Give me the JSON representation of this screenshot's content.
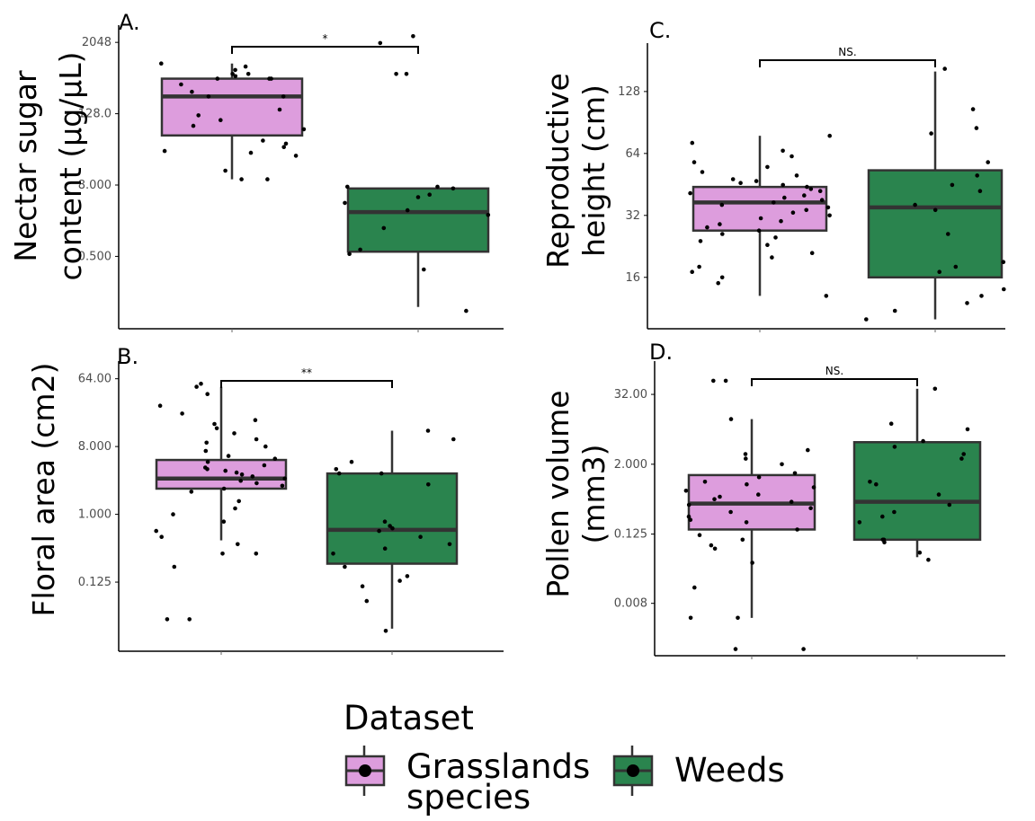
{
  "colors": {
    "grasslands": "#dd9ddd",
    "weeds": "#2a844e",
    "box_stroke": "#333333",
    "point": "#000000",
    "axis": "#000000"
  },
  "chart_data": [
    {
      "type": "box",
      "panel_label": "A.",
      "ylabel_lines": [
        "Nectar sugar",
        "content (µg/µL)"
      ],
      "scale": "log2",
      "yticks": [
        0.5,
        8,
        128,
        2048
      ],
      "ytick_labels": [
        "0.500",
        "8.000",
        "128.0",
        "2048"
      ],
      "ylim": [
        0.03,
        4000
      ],
      "significance": "*",
      "groups": [
        {
          "name": "Grasslands species",
          "q1": 55,
          "median": 250,
          "q3": 500,
          "whisker_low": 10,
          "whisker_high": 900,
          "points": [
            10,
            10,
            14,
            120,
            150,
            500,
            600,
            550,
            700,
            900,
            800,
            600,
            500,
            250,
            250,
            100,
            80,
            70,
            45,
            40,
            35,
            30,
            28,
            25,
            300,
            500,
            400
          ]
        },
        {
          "name": "Weeds",
          "q1": 0.6,
          "median": 2.8,
          "q3": 7,
          "whisker_low": 0.07,
          "whisker_high": 7,
          "points": [
            0.06,
            0.3,
            0.55,
            0.65,
            1.5,
            2.5,
            3,
            4,
            5,
            5.5,
            7,
            7.5,
            7.5,
            600,
            600,
            2000,
            2600
          ]
        }
      ]
    },
    {
      "type": "box",
      "panel_label": "C.",
      "ylabel_lines": [
        "Reproductive",
        "height (cm)"
      ],
      "scale": "log2",
      "yticks": [
        16,
        32,
        64,
        128
      ],
      "ytick_labels": [
        "16",
        "32",
        "64",
        "128"
      ],
      "ylim": [
        9,
        220
      ],
      "significance": "NS.",
      "groups": [
        {
          "name": "Grasslands species",
          "q1": 27,
          "median": 37,
          "q3": 44,
          "whisker_low": 13,
          "whisker_high": 78,
          "points": [
            13,
            15,
            16,
            17,
            18,
            20,
            21,
            23,
            24,
            25,
            26,
            27,
            28,
            29,
            30,
            31,
            32,
            33,
            34,
            35,
            36,
            37,
            38,
            39,
            40,
            41,
            42,
            43,
            44,
            45,
            46,
            47,
            48,
            50,
            52,
            55,
            58,
            62,
            66,
            72,
            78
          ]
        },
        {
          "name": "Weeds",
          "q1": 16,
          "median": 35,
          "q3": 53,
          "whisker_low": 10,
          "whisker_high": 160,
          "points": [
            10,
            11,
            12,
            13,
            14,
            17,
            18,
            19,
            26,
            34,
            36,
            42,
            45,
            50,
            58,
            80,
            85,
            105,
            165
          ]
        }
      ]
    },
    {
      "type": "box",
      "panel_label": "B.",
      "ylabel_lines": [
        "Floral area (cm2)"
      ],
      "scale": "log2",
      "yticks": [
        0.125,
        1,
        8,
        64
      ],
      "ytick_labels": [
        "0.125",
        "1.000",
        "8.000",
        "64.00"
      ],
      "ylim": [
        0.015,
        110
      ],
      "significance": "**",
      "groups": [
        {
          "name": "Grasslands species",
          "q1": 2.2,
          "median": 3.0,
          "q3": 5.3,
          "whisker_low": 0.45,
          "whisker_high": 50,
          "points": [
            0.04,
            0.04,
            0.2,
            0.3,
            0.3,
            0.4,
            0.5,
            0.6,
            0.8,
            1.0,
            1.2,
            1.5,
            2,
            2.2,
            2.4,
            2.6,
            2.8,
            3,
            3.2,
            3.4,
            3.6,
            3.8,
            4,
            4.2,
            4.5,
            5,
            5.5,
            6,
            7,
            8,
            9,
            10,
            12,
            14,
            16,
            18,
            22,
            28,
            40,
            50,
            55
          ]
        },
        {
          "name": "Weeds",
          "q1": 0.22,
          "median": 0.62,
          "q3": 3.5,
          "whisker_low": 0.03,
          "whisker_high": 13,
          "points": [
            0.028,
            0.07,
            0.11,
            0.13,
            0.15,
            0.2,
            0.3,
            0.35,
            0.4,
            0.5,
            0.6,
            0.65,
            0.7,
            0.8,
            2.5,
            3.5,
            3.5,
            4,
            5,
            10,
            13
          ]
        }
      ]
    },
    {
      "type": "box",
      "panel_label": "D.",
      "ylabel_lines": [
        "Pollen volume",
        "(mm3)"
      ],
      "scale": "log2",
      "yticks": [
        0.008,
        0.125,
        2,
        32
      ],
      "ytick_labels": [
        "0.008",
        "0.125",
        "2.000",
        "32.00"
      ],
      "ylim": [
        0.001,
        120
      ],
      "significance": "NS.",
      "groups": [
        {
          "name": "Grasslands species",
          "q1": 0.15,
          "median": 0.42,
          "q3": 1.3,
          "whisker_low": 0.0045,
          "whisker_high": 12,
          "points": [
            0.0013,
            0.0013,
            0.0045,
            0.0045,
            0.015,
            0.04,
            0.07,
            0.08,
            0.1,
            0.12,
            0.15,
            0.2,
            0.22,
            0.25,
            0.3,
            0.35,
            0.4,
            0.45,
            0.5,
            0.55,
            0.6,
            0.7,
            0.8,
            0.9,
            1.0,
            1.2,
            1.4,
            2,
            2.5,
            3,
            3.5,
            12,
            55,
            55
          ]
        },
        {
          "name": "Weeds",
          "q1": 0.1,
          "median": 0.45,
          "q3": 4.8,
          "whisker_low": 0.05,
          "whisker_high": 40,
          "points": [
            0.045,
            0.06,
            0.09,
            0.1,
            0.1,
            0.2,
            0.25,
            0.3,
            0.4,
            0.6,
            0.9,
            1.0,
            2.5,
            3,
            4,
            5,
            8,
            10,
            40
          ]
        }
      ]
    }
  ],
  "legend": {
    "title": "Dataset",
    "items": [
      {
        "label_lines": [
          "Grasslands",
          "species"
        ],
        "color": "#dd9ddd"
      },
      {
        "label_lines": [
          "Weeds"
        ],
        "color": "#2a844e"
      }
    ]
  }
}
